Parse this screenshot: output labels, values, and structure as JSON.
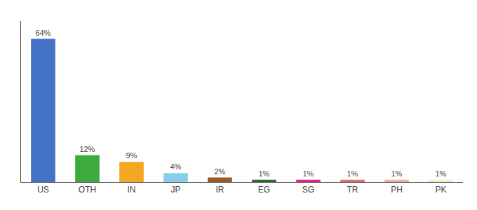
{
  "chart_data": {
    "type": "bar",
    "categories": [
      "US",
      "OTH",
      "IN",
      "JP",
      "IR",
      "EG",
      "SG",
      "TR",
      "PH",
      "PK"
    ],
    "values": [
      64,
      12,
      9,
      4,
      2,
      1,
      1,
      1,
      1,
      1
    ],
    "value_labels": [
      "64%",
      "12%",
      "9%",
      "4%",
      "2%",
      "1%",
      "1%",
      "1%",
      "1%",
      "1%"
    ],
    "colors": [
      "#4472c4",
      "#3daa3d",
      "#f5a623",
      "#87ceeb",
      "#9b5a2a",
      "#2a6b2a",
      "#e91e8c",
      "#e07070",
      "#e8b4a0",
      "#f0f0c8"
    ],
    "ylim": [
      0,
      72
    ],
    "data_labels": true,
    "tick_labels": "x",
    "grid": false
  }
}
